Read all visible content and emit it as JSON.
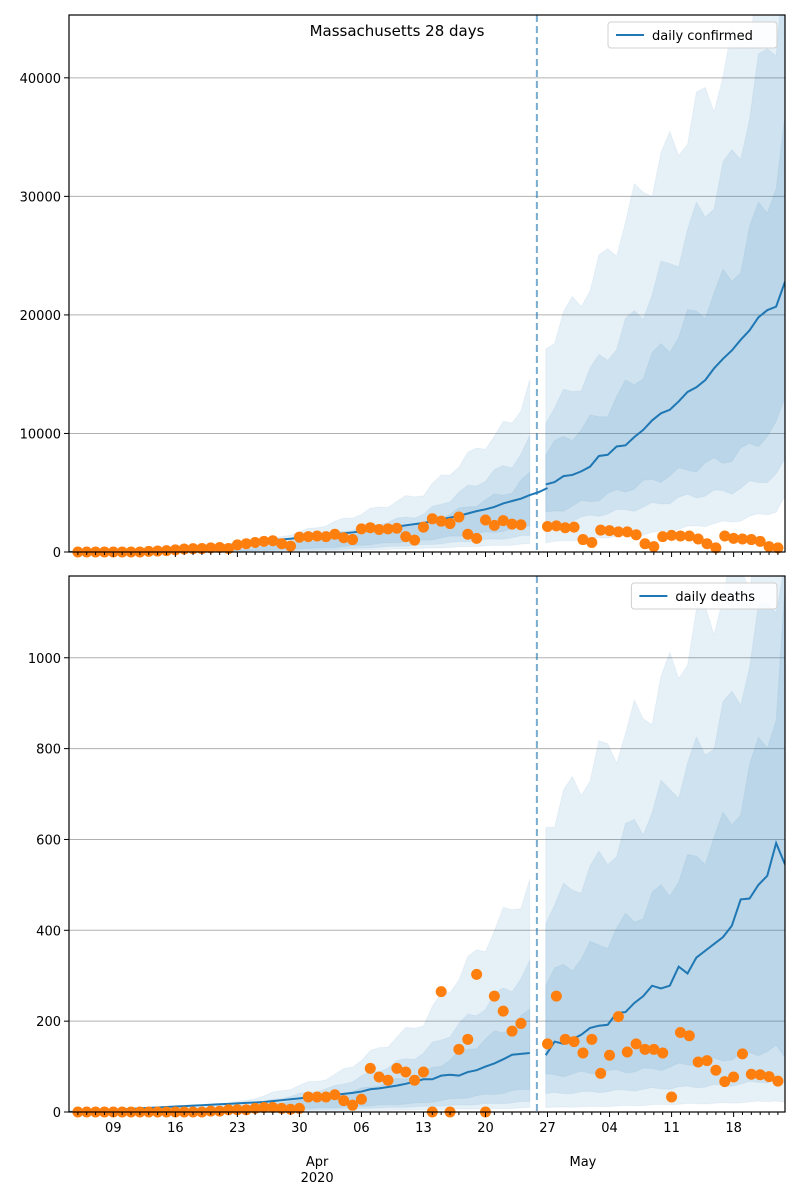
{
  "chart_data": [
    {
      "type": "line",
      "title": "Massachusetts 28 days",
      "xlabel": "",
      "ylabel": "",
      "ylim": [
        0,
        45300
      ],
      "yticks": [
        0,
        10000,
        20000,
        30000,
        40000
      ],
      "grid": "horizontal",
      "legend": {
        "position": "top-right",
        "entries": [
          "daily confirmed"
        ]
      },
      "forecast_start_day": 52.8,
      "x_start": "2020-03-04",
      "x_range_days": [
        0,
        80.8
      ],
      "observed_start_day": 1,
      "observed": [
        0,
        0,
        0,
        0,
        0,
        0,
        0,
        0,
        50,
        80,
        120,
        180,
        250,
        280,
        290,
        350,
        380,
        300,
        600,
        700,
        800,
        900,
        950,
        700,
        500,
        1250,
        1300,
        1350,
        1300,
        1500,
        1200,
        1050,
        1950,
        2050,
        1900,
        1950,
        2000,
        1300,
        1000,
        2100,
        2800,
        2600,
        2400,
        2950,
        1500,
        1150,
        2700,
        2250,
        2650,
        2350,
        2300,
        null,
        null,
        2150,
        2200,
        2050,
        2100,
        1050,
        800,
        1850,
        1800,
        1700,
        1700,
        1450,
        700,
        450,
        1300,
        1400,
        1350,
        1350,
        1100,
        700,
        350,
        1350,
        1150,
        1100,
        1050,
        900,
        450,
        350
      ],
      "median_start_day": 0,
      "median": [
        0,
        10,
        20,
        30,
        40,
        50,
        60,
        80,
        100,
        120,
        150,
        180,
        220,
        260,
        320,
        380,
        450,
        520,
        600,
        680,
        760,
        850,
        930,
        1000,
        1060,
        1120,
        1200,
        1280,
        1350,
        1420,
        1500,
        1580,
        1650,
        1750,
        1850,
        1950,
        2050,
        2150,
        2250,
        2350,
        2450,
        2600,
        2750,
        2900,
        3050,
        3250,
        3450,
        3600,
        3800,
        4100,
        4300,
        4500,
        4800,
        5050,
        5400
      ],
      "forecast_median_start_day": 53.8,
      "forecast_median": [
        5700,
        5900,
        6400,
        6500,
        6800,
        7200,
        8100,
        8200,
        8900,
        9000,
        9700,
        10300,
        11100,
        11700,
        12000,
        12700,
        13500,
        13900,
        14500,
        15500,
        16300,
        17000,
        17900,
        18700,
        19800,
        20400,
        20700,
        22800
      ],
      "bands_note": "nested credible-interval bands; values are upper bounds at selected days",
      "band_days": [
        0,
        10,
        20,
        30,
        40,
        50,
        52.8,
        53.8,
        60,
        65,
        70,
        75,
        80,
        80.8
      ],
      "bands": [
        {
          "name": "outer",
          "lower": [
            0,
            0,
            0,
            100,
            300,
            600,
            700,
            800,
            1200,
            1500,
            2100,
            2600,
            3500,
            4500
          ],
          "upper": [
            0,
            50,
            500,
            2500,
            5000,
            11000,
            15500,
            17500,
            24000,
            31000,
            36000,
            42000,
            52000,
            60000
          ]
        },
        {
          "name": "middle",
          "lower": [
            0,
            0,
            50,
            200,
            600,
            1200,
            1500,
            2200,
            3200,
            3800,
            4700,
            5200,
            6500,
            7500
          ],
          "upper": [
            0,
            30,
            300,
            1600,
            3200,
            7500,
            10000,
            11500,
            16000,
            21000,
            27000,
            33000,
            45000,
            50000
          ]
        },
        {
          "name": "inner",
          "lower": [
            0,
            0,
            100,
            400,
            1000,
            1900,
            2500,
            3200,
            4600,
            5800,
            7000,
            8000,
            10500,
            13000
          ],
          "upper": [
            0,
            20,
            200,
            1200,
            2400,
            5200,
            7000,
            8500,
            11500,
            15500,
            19500,
            23500,
            32000,
            35000
          ]
        }
      ]
    },
    {
      "type": "line",
      "title": "",
      "xlabel": "",
      "ylabel": "",
      "ylim": [
        0,
        1180
      ],
      "yticks": [
        0,
        200,
        400,
        600,
        800,
        1000
      ],
      "grid": "horizontal",
      "legend": {
        "position": "top-right",
        "entries": [
          "daily deaths"
        ]
      },
      "forecast_start_day": 52.8,
      "x_start": "2020-03-04",
      "x_range_days": [
        0,
        80.8
      ],
      "observed_start_day": 1,
      "observed": [
        0,
        0,
        0,
        0,
        0,
        0,
        0,
        0,
        0,
        0,
        0,
        0,
        0,
        0,
        0,
        2,
        2,
        5,
        5,
        5,
        8,
        10,
        10,
        8,
        6,
        8,
        33,
        33,
        33,
        38,
        25,
        15,
        28,
        96,
        77,
        70,
        96,
        88,
        70,
        88,
        0,
        265,
        0,
        138,
        160,
        303,
        0,
        255,
        222,
        178,
        195,
        null,
        null,
        150,
        255,
        160,
        155,
        130,
        160,
        85,
        125,
        210,
        132,
        150,
        138,
        138,
        130,
        33,
        175,
        168,
        110,
        113,
        92,
        67,
        77,
        128,
        83,
        82,
        78,
        68
      ],
      "median_start_day": 0,
      "median": [
        0,
        1,
        2,
        3,
        4,
        5,
        6,
        7,
        8,
        9,
        10,
        11,
        12,
        13,
        14,
        15,
        16,
        17,
        18,
        19,
        20,
        21,
        22,
        24,
        26,
        28,
        30,
        32,
        34,
        36,
        38,
        40,
        42,
        45,
        50,
        52,
        55,
        58,
        62,
        67,
        72,
        72,
        80,
        82,
        80,
        88,
        92,
        100,
        107,
        116,
        126,
        128,
        130
      ],
      "forecast_median_start_day": 53.8,
      "forecast_median": [
        125,
        155,
        150,
        160,
        170,
        185,
        190,
        192,
        218,
        220,
        240,
        255,
        278,
        272,
        278,
        320,
        305,
        340,
        355,
        370,
        385,
        410,
        468,
        470,
        500,
        520,
        592,
        545
      ],
      "band_days": [
        0,
        10,
        20,
        30,
        40,
        50,
        52.8,
        53.8,
        60,
        65,
        70,
        75,
        80,
        80.8
      ],
      "bands": [
        {
          "name": "outer",
          "lower": [
            0,
            0,
            0,
            2,
            5,
            8,
            10,
            10,
            12,
            15,
            18,
            20,
            25,
            20
          ],
          "upper": [
            0,
            5,
            25,
            80,
            200,
            450,
            520,
            640,
            780,
            880,
            1030,
            1180,
            1300,
            1400
          ]
        },
        {
          "name": "middle",
          "lower": [
            0,
            0,
            2,
            6,
            12,
            20,
            25,
            40,
            45,
            50,
            55,
            60,
            70,
            60
          ],
          "upper": [
            0,
            3,
            15,
            55,
            130,
            280,
            330,
            440,
            550,
            650,
            760,
            900,
            1180,
            1200
          ]
        },
        {
          "name": "inner",
          "lower": [
            0,
            0,
            4,
            10,
            20,
            45,
            55,
            80,
            88,
            92,
            105,
            120,
            140,
            120
          ],
          "upper": [
            0,
            2,
            10,
            35,
            85,
            190,
            230,
            290,
            370,
            450,
            540,
            650,
            900,
            1100
          ]
        }
      ]
    }
  ],
  "x_axis": {
    "day_ticks": [
      {
        "day": 5,
        "label": "09"
      },
      {
        "day": 12,
        "label": "16"
      },
      {
        "day": 19,
        "label": "23"
      },
      {
        "day": 26,
        "label": "30"
      },
      {
        "day": 33,
        "label": "06"
      },
      {
        "day": 40,
        "label": "13"
      },
      {
        "day": 47,
        "label": "20"
      },
      {
        "day": 54,
        "label": "27"
      },
      {
        "day": 61,
        "label": "04"
      },
      {
        "day": 68,
        "label": "11"
      },
      {
        "day": 75,
        "label": "18"
      }
    ],
    "month_labels": [
      {
        "day": 28,
        "label": "Apr",
        "sub": "2020"
      },
      {
        "day": 58,
        "label": "May",
        "sub": ""
      }
    ]
  },
  "colors": {
    "line": "#1f77b4",
    "dots": "#ff7f0e",
    "band": "#1f77b4",
    "grid": "#b0b0b0",
    "forecast_line": "#1f77b4"
  }
}
